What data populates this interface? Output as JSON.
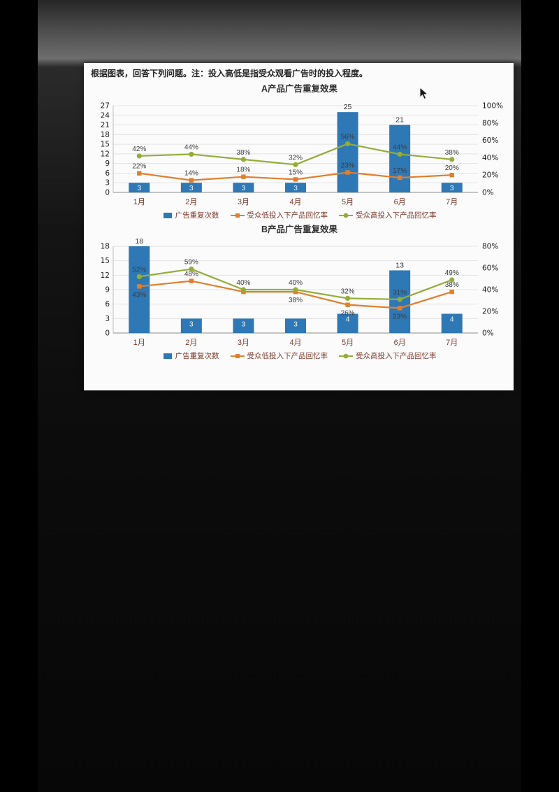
{
  "page": {
    "note": "根据图表，回答下列问题。注：投入高低是指受众观看广告时的投入程度。"
  },
  "colors": {
    "bar": "#2e78b5",
    "low": "#e07f2c",
    "high": "#94ad3a",
    "category_text": "#7c3a2b"
  },
  "chart_data": [
    {
      "type": "bar+line",
      "title": "A产品广告重复效果",
      "categories": [
        "1月",
        "2月",
        "3月",
        "4月",
        "5月",
        "6月",
        "7月"
      ],
      "left_axis": {
        "min": 0,
        "max": 27,
        "step": 3
      },
      "right_axis": {
        "min": 0,
        "max": 100,
        "step": 20,
        "suffix": "%"
      },
      "grid": true,
      "legend_position": "bottom",
      "bars": {
        "name": "广告重复次数",
        "values": [
          3,
          3,
          3,
          3,
          25,
          21,
          3
        ]
      },
      "series": [
        {
          "name": "受众低投入下产品回忆率",
          "color_key": "low",
          "marker": "square",
          "values": [
            22,
            14,
            18,
            15,
            23,
            17,
            20
          ],
          "labels": [
            "22%",
            "14%",
            "18%",
            "15%",
            "23%",
            "17%",
            "20%"
          ]
        },
        {
          "name": "受众高投入下产品回忆率",
          "color_key": "high",
          "marker": "circle",
          "values": [
            42,
            44,
            38,
            32,
            56,
            44,
            38
          ],
          "labels": [
            "42%",
            "44%",
            "38%",
            "32%",
            "56%",
            "44%",
            "38%"
          ]
        }
      ]
    },
    {
      "type": "bar+line",
      "title": "B产品广告重复效果",
      "categories": [
        "1月",
        "2月",
        "3月",
        "4月",
        "5月",
        "6月",
        "7月"
      ],
      "left_axis": {
        "min": 0,
        "max": 18,
        "step": 3
      },
      "right_axis": {
        "min": 0,
        "max": 80,
        "step": 20,
        "suffix": "%"
      },
      "grid": true,
      "legend_position": "bottom",
      "bars": {
        "name": "广告重复次数",
        "values": [
          18,
          3,
          3,
          3,
          4,
          13,
          4
        ]
      },
      "series": [
        {
          "name": "受众低投入下产品回忆率",
          "color_key": "low",
          "marker": "square",
          "values": [
            43,
            48,
            38,
            38,
            26,
            23,
            38
          ],
          "labels": [
            "43%",
            "48%",
            "",
            "38%",
            "26%",
            "23%",
            "38%"
          ]
        },
        {
          "name": "受众高投入下产品回忆率",
          "color_key": "high",
          "marker": "circle",
          "values": [
            52,
            59,
            40,
            40,
            32,
            31,
            49
          ],
          "labels": [
            "52%",
            "59%",
            "40%",
            "40%",
            "32%",
            "31%",
            "49%"
          ]
        }
      ]
    }
  ]
}
